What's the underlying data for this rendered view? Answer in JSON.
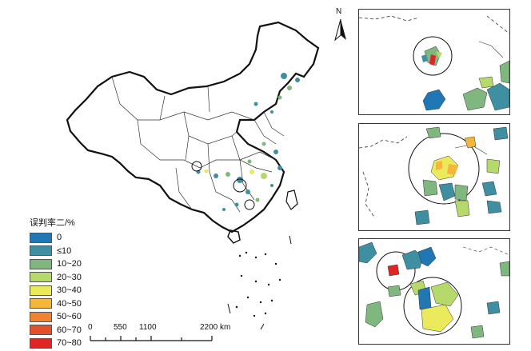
{
  "north_arrow": {
    "label": "N"
  },
  "legend": {
    "title": "误判率二/%",
    "items": [
      {
        "label": "0",
        "color": "#1f78b4"
      },
      {
        "label": "≤10",
        "color": "#3f8fa3"
      },
      {
        "label": "10~20",
        "color": "#7fb77e"
      },
      {
        "label": "20~30",
        "color": "#b5d96a"
      },
      {
        "label": "30~40",
        "color": "#eaea5c"
      },
      {
        "label": "40~50",
        "color": "#f5b73b"
      },
      {
        "label": "50~60",
        "color": "#f08232"
      },
      {
        "label": "60~70",
        "color": "#e4502a"
      },
      {
        "label": "70~80",
        "color": "#e02525"
      }
    ]
  },
  "scale_bar": {
    "ticks": [
      "0",
      "550",
      "1100",
      "2200 km"
    ]
  },
  "colors": {
    "boundary": "#111111",
    "province": "#333333",
    "cluster_main": "#3f8fa3",
    "cluster_light": "#7fb77e"
  }
}
